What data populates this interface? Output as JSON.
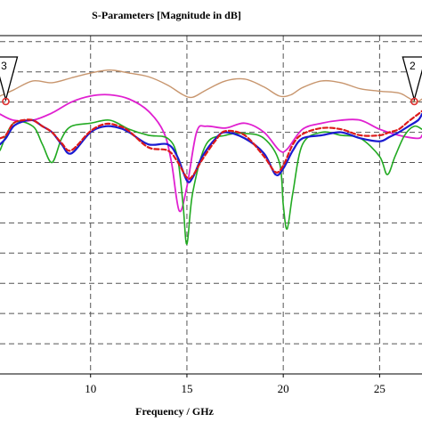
{
  "chart_data": {
    "type": "line",
    "title": "S-Parameters [Magnitude in dB]",
    "xlabel": "Frequency / GHz",
    "ylabel": "",
    "xlim": [
      5.3,
      27.2
    ],
    "ylim": [
      -50,
      6
    ],
    "grid": true,
    "x_ticks": [
      10,
      15,
      20,
      25
    ],
    "x_tick_labels": [
      "10",
      "15",
      "20",
      "25"
    ],
    "y_gridlines": [
      -45,
      -40,
      -35,
      -30,
      -25,
      -20,
      -15,
      -10,
      -5,
      0,
      5
    ],
    "markers": [
      {
        "label": "3",
        "x": 5.6
      },
      {
        "label": "2",
        "x": 26.8
      }
    ],
    "series": [
      {
        "color": "#c8966e",
        "width": 1.4,
        "dash": "",
        "x": [
          5.3,
          6.0,
          7.0,
          8.0,
          9.0,
          10.0,
          11.0,
          12.0,
          13.0,
          14.0,
          14.8,
          15.3,
          16.0,
          17.0,
          18.0,
          19.0,
          19.8,
          20.4,
          21.0,
          22.0,
          23.0,
          24.0,
          25.0,
          26.0,
          26.5,
          26.9,
          27.2
        ],
        "values": [
          -4.0,
          -3.0,
          -1.5,
          -1.8,
          -1.0,
          -0.2,
          0.3,
          -0.2,
          -0.8,
          -2.2,
          -3.8,
          -4.2,
          -3.0,
          -1.5,
          -1.2,
          -2.5,
          -4.0,
          -3.8,
          -2.6,
          -1.5,
          -1.8,
          -2.8,
          -3.2,
          -3.5,
          -4.3,
          -5.0,
          -4.5
        ]
      },
      {
        "color": "#e020d0",
        "width": 1.8,
        "dash": "",
        "x": [
          5.3,
          6.0,
          7.0,
          8.0,
          9.0,
          10.0,
          11.0,
          12.0,
          13.0,
          13.8,
          14.2,
          14.6,
          15.0,
          15.5,
          16.0,
          17.0,
          18.0,
          19.0,
          19.8,
          20.2,
          21.0,
          22.0,
          23.0,
          24.0,
          25.0,
          26.0,
          27.0,
          27.2
        ],
        "values": [
          -7.0,
          -8.0,
          -8.0,
          -6.8,
          -5.0,
          -4.0,
          -3.8,
          -4.5,
          -6.5,
          -10.0,
          -15.0,
          -23.0,
          -19.0,
          -10.0,
          -9.0,
          -9.3,
          -8.5,
          -10.0,
          -13.0,
          -12.8,
          -9.5,
          -8.5,
          -8.0,
          -8.0,
          -9.5,
          -10.5,
          -11.0,
          -10.5
        ]
      },
      {
        "color": "#22aa22",
        "width": 1.6,
        "dash": "",
        "x": [
          5.3,
          6.0,
          7.0,
          7.5,
          8.0,
          8.5,
          9.0,
          10.0,
          11.0,
          12.0,
          13.0,
          14.0,
          14.5,
          14.8,
          15.0,
          15.3,
          16.0,
          17.0,
          18.0,
          19.0,
          19.8,
          20.0,
          20.2,
          20.5,
          21.0,
          22.0,
          23.0,
          24.0,
          25.0,
          25.4,
          25.8,
          26.3,
          26.8,
          27.2
        ],
        "values": [
          -13.0,
          -8.5,
          -9.0,
          -12.0,
          -15.0,
          -11.0,
          -9.0,
          -8.5,
          -8.0,
          -9.5,
          -10.5,
          -11.0,
          -14.0,
          -22.0,
          -28.5,
          -20.0,
          -12.0,
          -10.5,
          -10.2,
          -11.0,
          -15.0,
          -22.0,
          -26.0,
          -20.0,
          -12.0,
          -10.0,
          -10.5,
          -11.0,
          -14.0,
          -17.0,
          -14.0,
          -10.5,
          -9.0,
          -9.5
        ]
      },
      {
        "color": "#1a1ad0",
        "width": 2.2,
        "dash": "",
        "x": [
          5.3,
          5.6,
          6.0,
          6.5,
          7.0,
          7.5,
          8.0,
          8.5,
          9.0,
          10.0,
          10.8,
          11.5,
          12.0,
          13.0,
          14.0,
          14.5,
          15.0,
          15.3,
          15.8,
          16.5,
          17.0,
          18.0,
          19.0,
          19.6,
          20.0,
          20.5,
          21.0,
          22.0,
          23.0,
          24.0,
          25.0,
          25.5,
          26.0,
          26.5,
          27.0,
          27.2
        ],
        "values": [
          -12.0,
          -11.0,
          -9.0,
          -8.2,
          -8.0,
          -9.0,
          -10.0,
          -12.0,
          -13.5,
          -10.0,
          -9.0,
          -9.3,
          -10.0,
          -12.0,
          -12.0,
          -14.0,
          -18.0,
          -17.5,
          -14.0,
          -11.0,
          -10.0,
          -11.0,
          -13.5,
          -17.0,
          -16.0,
          -13.0,
          -11.0,
          -10.5,
          -10.0,
          -11.0,
          -11.5,
          -10.8,
          -10.0,
          -9.0,
          -8.0,
          -7.0
        ]
      },
      {
        "color": "#dd1a1a",
        "width": 2.2,
        "dash": "5,3",
        "x": [
          5.3,
          5.6,
          6.0,
          6.5,
          7.0,
          7.5,
          8.0,
          8.5,
          9.0,
          10.0,
          10.8,
          11.5,
          12.0,
          13.0,
          14.0,
          14.5,
          15.0,
          15.3,
          15.8,
          16.5,
          17.0,
          18.0,
          19.0,
          19.6,
          20.0,
          20.5,
          21.0,
          22.0,
          23.0,
          24.0,
          25.0,
          25.5,
          26.0,
          26.5,
          27.0,
          27.2
        ],
        "values": [
          -11.0,
          -10.5,
          -8.5,
          -8.0,
          -8.0,
          -9.0,
          -10.0,
          -11.8,
          -13.0,
          -9.8,
          -8.6,
          -9.0,
          -9.8,
          -12.5,
          -13.0,
          -14.8,
          -17.5,
          -17.2,
          -14.5,
          -11.3,
          -9.8,
          -10.5,
          -14.0,
          -16.6,
          -15.5,
          -12.0,
          -10.3,
          -9.3,
          -9.5,
          -10.5,
          -10.5,
          -10.0,
          -9.5,
          -8.2,
          -7.0,
          -6.5
        ]
      }
    ]
  }
}
